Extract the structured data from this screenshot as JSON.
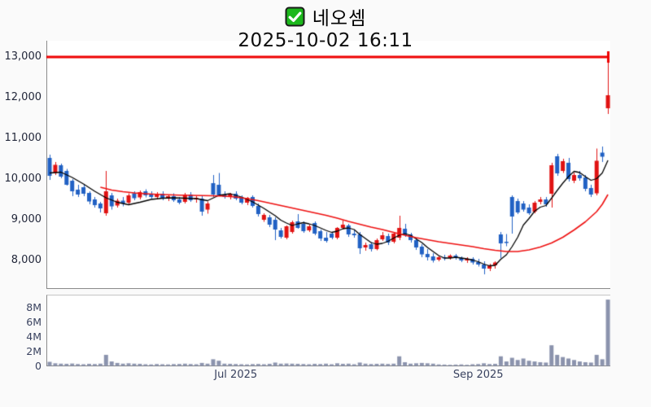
{
  "header": {
    "title": "네오셈",
    "datetime": "2025-10-02 16:11",
    "check_icon": "checked-checkbox"
  },
  "colors": {
    "up": "#e01212",
    "down": "#2161c4",
    "ma_short": "#000000",
    "ma_long": "#ee1111",
    "hline": "#ee0000",
    "volume_bar": "#8b93ad",
    "axis_line": "#8a8a8a",
    "price_tick_text": "#22273a",
    "volume_tick_text": "#39425f",
    "plot_bg": "#ffffff",
    "page_bg": "#fafafa",
    "check_green": "#1cb81c"
  },
  "chart_data": {
    "type": "candlestick",
    "title": "네오셈",
    "subtitle": "2025-10-02 16:11",
    "legend_position": "none",
    "grid": false,
    "price_axis": {
      "side": "left",
      "range": [
        7300,
        13400
      ],
      "ticks": [
        {
          "value": 13000,
          "label": "13,000"
        },
        {
          "value": 12000,
          "label": "12,000"
        },
        {
          "value": 11000,
          "label": "11,000"
        },
        {
          "value": 10000,
          "label": "10,000"
        },
        {
          "value": 9000,
          "label": "9,000"
        },
        {
          "value": 8000,
          "label": "8,000"
        }
      ]
    },
    "volume_axis": {
      "side": "left",
      "unit": "millions_of_shares",
      "range": [
        0,
        9.7
      ],
      "ticks": [
        {
          "value": 8,
          "label": "8M"
        },
        {
          "value": 6,
          "label": "6M"
        },
        {
          "value": 4,
          "label": "4M"
        },
        {
          "value": 2,
          "label": "2M"
        },
        {
          "value": 0,
          "label": "0"
        }
      ]
    },
    "x_axis": {
      "ticks": [
        {
          "index": 33,
          "label": "Jul 2025"
        },
        {
          "index": 76,
          "label": "Sep 2025"
        }
      ]
    },
    "hline": {
      "value": 13000,
      "note": "horizontal red level line ending with tick at last candle high"
    },
    "ohlcv": [
      [
        10520,
        10600,
        9980,
        10080,
        0.55
      ],
      [
        10150,
        10420,
        10100,
        10350,
        0.35
      ],
      [
        10340,
        10380,
        10020,
        10060,
        0.3
      ],
      [
        10200,
        10250,
        9840,
        9860,
        0.28
      ],
      [
        9960,
        10000,
        9580,
        9700,
        0.32
      ],
      [
        9740,
        9860,
        9560,
        9620,
        0.25
      ],
      [
        9800,
        9880,
        9580,
        9640,
        0.22
      ],
      [
        9660,
        9700,
        9380,
        9450,
        0.28
      ],
      [
        9500,
        9560,
        9300,
        9360,
        0.25
      ],
      [
        9400,
        9440,
        9180,
        9280,
        0.3
      ],
      [
        9160,
        10200,
        9100,
        9700,
        1.5
      ],
      [
        9600,
        9660,
        9250,
        9330,
        0.6
      ],
      [
        9350,
        9520,
        9300,
        9470,
        0.4
      ],
      [
        9470,
        9560,
        9330,
        9400,
        0.3
      ],
      [
        9420,
        9650,
        9380,
        9600,
        0.35
      ],
      [
        9650,
        9700,
        9480,
        9530,
        0.3
      ],
      [
        9550,
        9720,
        9500,
        9680,
        0.28
      ],
      [
        9700,
        9750,
        9550,
        9600,
        0.22
      ],
      [
        9620,
        9700,
        9520,
        9560,
        0.2
      ],
      [
        9560,
        9680,
        9500,
        9640,
        0.25
      ],
      [
        9640,
        9700,
        9480,
        9520,
        0.22
      ],
      [
        9540,
        9620,
        9460,
        9580,
        0.2
      ],
      [
        9580,
        9650,
        9440,
        9480,
        0.24
      ],
      [
        9500,
        9560,
        9380,
        9420,
        0.26
      ],
      [
        9440,
        9660,
        9400,
        9620,
        0.3
      ],
      [
        9620,
        9680,
        9440,
        9480,
        0.25
      ],
      [
        9500,
        9580,
        9420,
        9540,
        0.22
      ],
      [
        9520,
        9600,
        9100,
        9200,
        0.4
      ],
      [
        9250,
        9450,
        9150,
        9400,
        0.3
      ],
      [
        9900,
        10100,
        9560,
        9620,
        0.9
      ],
      [
        9860,
        10150,
        9580,
        9600,
        0.7
      ],
      [
        9620,
        9700,
        9520,
        9560,
        0.3
      ],
      [
        9560,
        9660,
        9500,
        9640,
        0.28
      ],
      [
        9640,
        9700,
        9480,
        9520,
        0.25
      ],
      [
        9540,
        9600,
        9380,
        9420,
        0.22
      ],
      [
        9420,
        9560,
        9360,
        9540,
        0.2
      ],
      [
        9560,
        9600,
        9300,
        9340,
        0.24
      ],
      [
        9340,
        9400,
        9080,
        9140,
        0.26
      ],
      [
        9000,
        9160,
        8950,
        9120,
        0.22
      ],
      [
        9060,
        9120,
        8820,
        8880,
        0.28
      ],
      [
        9000,
        9060,
        8500,
        8760,
        0.45
      ],
      [
        8740,
        8800,
        8540,
        8580,
        0.3
      ],
      [
        8560,
        8860,
        8520,
        8840,
        0.32
      ],
      [
        8700,
        8980,
        8660,
        8940,
        0.3
      ],
      [
        8960,
        9140,
        8780,
        8800,
        0.28
      ],
      [
        8900,
        8960,
        8680,
        8720,
        0.25
      ],
      [
        8740,
        8880,
        8700,
        8840,
        0.22
      ],
      [
        8920,
        8960,
        8620,
        8660,
        0.28
      ],
      [
        8720,
        8760,
        8480,
        8540,
        0.25
      ],
      [
        8560,
        8700,
        8440,
        8480,
        0.3
      ],
      [
        8660,
        8700,
        8520,
        8560,
        0.22
      ],
      [
        8560,
        8820,
        8520,
        8800,
        0.35
      ],
      [
        8800,
        8980,
        8760,
        8880,
        0.28
      ],
      [
        8860,
        8900,
        8580,
        8640,
        0.3
      ],
      [
        8660,
        8740,
        8560,
        8620,
        0.22
      ],
      [
        8640,
        8700,
        8160,
        8300,
        0.45
      ],
      [
        8320,
        8440,
        8240,
        8380,
        0.3
      ],
      [
        8400,
        8450,
        8220,
        8280,
        0.25
      ],
      [
        8280,
        8540,
        8250,
        8500,
        0.28
      ],
      [
        8520,
        8700,
        8480,
        8620,
        0.3
      ],
      [
        8600,
        8660,
        8380,
        8440,
        0.26
      ],
      [
        8460,
        8700,
        8420,
        8660,
        0.3
      ],
      [
        8560,
        9100,
        8500,
        8800,
        1.3
      ],
      [
        8780,
        8900,
        8580,
        8620,
        0.5
      ],
      [
        8640,
        8680,
        8440,
        8500,
        0.3
      ],
      [
        8500,
        8560,
        8260,
        8320,
        0.35
      ],
      [
        8340,
        8400,
        8080,
        8150,
        0.4
      ],
      [
        8160,
        8280,
        8000,
        8080,
        0.35
      ],
      [
        8100,
        8180,
        7950,
        8000,
        0.3
      ],
      [
        8020,
        8120,
        7980,
        8080,
        0.2
      ],
      [
        8080,
        8140,
        8000,
        8060,
        0.18
      ],
      [
        8060,
        8150,
        8020,
        8120,
        0.15
      ],
      [
        8120,
        8160,
        8020,
        8060,
        0.18
      ],
      [
        8060,
        8100,
        7960,
        8000,
        0.2
      ],
      [
        8000,
        8080,
        7940,
        8040,
        0.15
      ],
      [
        8040,
        8080,
        7900,
        7950,
        0.22
      ],
      [
        7960,
        8040,
        7850,
        7900,
        0.25
      ],
      [
        7900,
        7980,
        7660,
        7800,
        0.35
      ],
      [
        7800,
        7920,
        7740,
        7880,
        0.25
      ],
      [
        7880,
        7980,
        7800,
        7950,
        0.28
      ],
      [
        8640,
        8700,
        8060,
        8420,
        1.3
      ],
      [
        8460,
        8650,
        8350,
        8440,
        0.6
      ],
      [
        9560,
        9600,
        8660,
        9080,
        1.1
      ],
      [
        9460,
        9520,
        9140,
        9180,
        0.8
      ],
      [
        9400,
        9460,
        9200,
        9250,
        1.0
      ],
      [
        9300,
        9380,
        9120,
        9160,
        0.7
      ],
      [
        9200,
        9460,
        9160,
        9420,
        0.6
      ],
      [
        9440,
        9560,
        9380,
        9500,
        0.5
      ],
      [
        9500,
        9560,
        9320,
        9380,
        0.45
      ],
      [
        9640,
        10400,
        9300,
        10340,
        2.8
      ],
      [
        10560,
        10620,
        10080,
        10140,
        1.5
      ],
      [
        10200,
        10500,
        10150,
        10440,
        1.2
      ],
      [
        10400,
        10520,
        9940,
        10000,
        1.0
      ],
      [
        9960,
        10160,
        9900,
        10100,
        0.8
      ],
      [
        10100,
        10200,
        9960,
        10020,
        0.6
      ],
      [
        10040,
        10100,
        9700,
        9760,
        0.5
      ],
      [
        9780,
        9860,
        9560,
        9620,
        0.45
      ],
      [
        9650,
        10750,
        9600,
        10450,
        1.5
      ],
      [
        10650,
        10800,
        10420,
        10550,
        0.9
      ],
      [
        11740,
        13000,
        11600,
        12060,
        9.0
      ]
    ],
    "ma_short_points": [
      [
        0,
        10150
      ],
      [
        2,
        10170
      ],
      [
        4,
        10040
      ],
      [
        6,
        9880
      ],
      [
        8,
        9700
      ],
      [
        10,
        9540
      ],
      [
        12,
        9430
      ],
      [
        14,
        9370
      ],
      [
        16,
        9430
      ],
      [
        18,
        9500
      ],
      [
        20,
        9530
      ],
      [
        22,
        9540
      ],
      [
        24,
        9530
      ],
      [
        26,
        9520
      ],
      [
        28,
        9470
      ],
      [
        30,
        9600
      ],
      [
        32,
        9640
      ],
      [
        34,
        9560
      ],
      [
        36,
        9440
      ],
      [
        38,
        9280
      ],
      [
        40,
        9100
      ],
      [
        41,
        8990
      ],
      [
        42,
        8920
      ],
      [
        43,
        8860
      ],
      [
        44,
        8900
      ],
      [
        45,
        8930
      ],
      [
        46,
        8900
      ],
      [
        47,
        8860
      ],
      [
        48,
        8800
      ],
      [
        49,
        8740
      ],
      [
        50,
        8690
      ],
      [
        51,
        8720
      ],
      [
        52,
        8780
      ],
      [
        53,
        8800
      ],
      [
        54,
        8760
      ],
      [
        55,
        8640
      ],
      [
        56,
        8540
      ],
      [
        57,
        8440
      ],
      [
        58,
        8400
      ],
      [
        59,
        8420
      ],
      [
        60,
        8470
      ],
      [
        61,
        8550
      ],
      [
        62,
        8620
      ],
      [
        63,
        8660
      ],
      [
        64,
        8620
      ],
      [
        65,
        8530
      ],
      [
        66,
        8440
      ],
      [
        67,
        8320
      ],
      [
        68,
        8220
      ],
      [
        69,
        8120
      ],
      [
        70,
        8060
      ],
      [
        71,
        8060
      ],
      [
        72,
        8080
      ],
      [
        73,
        8060
      ],
      [
        74,
        8040
      ],
      [
        75,
        8010
      ],
      [
        76,
        7970
      ],
      [
        77,
        7910
      ],
      [
        78,
        7870
      ],
      [
        79,
        7880
      ],
      [
        80,
        8030
      ],
      [
        81,
        8140
      ],
      [
        82,
        8340
      ],
      [
        83,
        8570
      ],
      [
        84,
        8870
      ],
      [
        85,
        9030
      ],
      [
        86,
        9210
      ],
      [
        87,
        9310
      ],
      [
        88,
        9350
      ],
      [
        89,
        9530
      ],
      [
        90,
        9720
      ],
      [
        91,
        9900
      ],
      [
        92,
        10060
      ],
      [
        93,
        10190
      ],
      [
        94,
        10160
      ],
      [
        95,
        10060
      ],
      [
        96,
        9970
      ],
      [
        97,
        10010
      ],
      [
        98,
        10150
      ],
      [
        99,
        10460
      ]
    ],
    "ma_long_points": [
      [
        9,
        9800
      ],
      [
        11,
        9730
      ],
      [
        13,
        9690
      ],
      [
        15,
        9660
      ],
      [
        17,
        9640
      ],
      [
        19,
        9625
      ],
      [
        21,
        9615
      ],
      [
        23,
        9605
      ],
      [
        25,
        9600
      ],
      [
        27,
        9595
      ],
      [
        29,
        9590
      ],
      [
        31,
        9580
      ],
      [
        33,
        9560
      ],
      [
        35,
        9520
      ],
      [
        37,
        9470
      ],
      [
        39,
        9410
      ],
      [
        41,
        9350
      ],
      [
        43,
        9290
      ],
      [
        45,
        9230
      ],
      [
        47,
        9170
      ],
      [
        49,
        9110
      ],
      [
        51,
        9040
      ],
      [
        53,
        8960
      ],
      [
        55,
        8890
      ],
      [
        57,
        8820
      ],
      [
        59,
        8760
      ],
      [
        61,
        8690
      ],
      [
        63,
        8620
      ],
      [
        65,
        8560
      ],
      [
        67,
        8510
      ],
      [
        69,
        8460
      ],
      [
        71,
        8420
      ],
      [
        73,
        8380
      ],
      [
        75,
        8340
      ],
      [
        77,
        8290
      ],
      [
        79,
        8250
      ],
      [
        81,
        8220
      ],
      [
        83,
        8220
      ],
      [
        85,
        8260
      ],
      [
        87,
        8330
      ],
      [
        89,
        8430
      ],
      [
        91,
        8570
      ],
      [
        93,
        8750
      ],
      [
        95,
        8950
      ],
      [
        97,
        9200
      ],
      [
        98,
        9380
      ],
      [
        99,
        9620
      ]
    ]
  }
}
